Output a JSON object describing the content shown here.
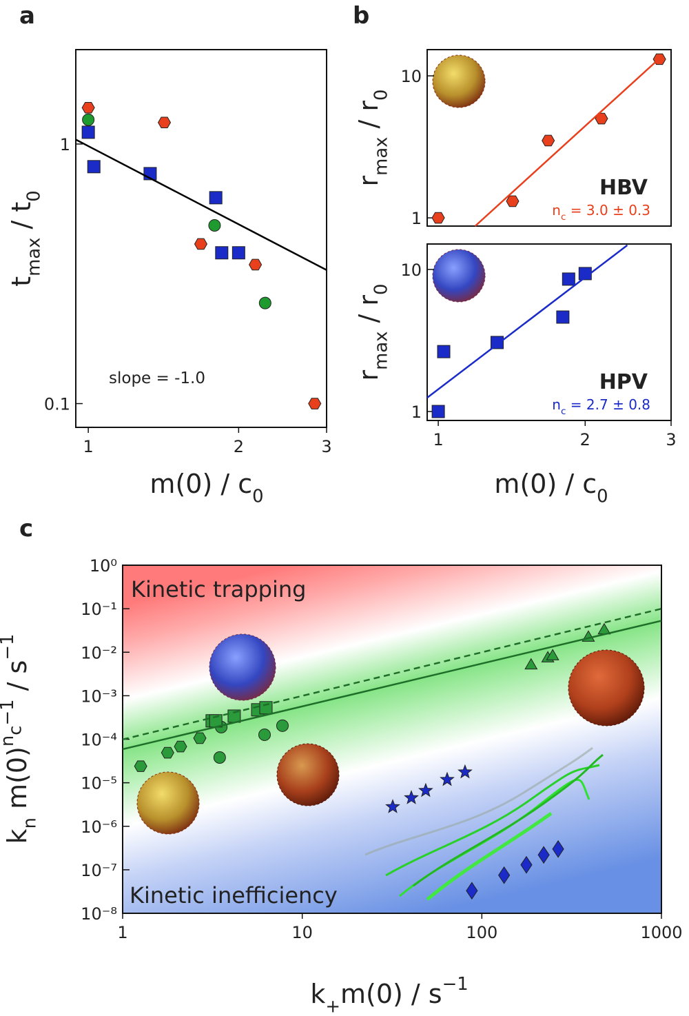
{
  "chart_data": [
    {
      "panel": "a",
      "type": "scatter",
      "xscale": "log",
      "yscale": "log",
      "xlim": [
        0.944,
        3
      ],
      "ylim": [
        0.081,
        2.31
      ],
      "xticks": [
        1,
        2,
        3
      ],
      "yticks": [
        0.1,
        1
      ],
      "xlabel": [
        {
          "text": "m(0) / c"
        },
        {
          "text": "0",
          "shift": "sub"
        }
      ],
      "ylabel": [
        {
          "text": "t"
        },
        {
          "text": "max",
          "shift": "sub"
        },
        {
          "text": " / t"
        },
        {
          "text": "0",
          "shift": "sub"
        }
      ],
      "annotation": "slope = -1.0",
      "series": [
        {
          "marker": "hexagon",
          "color": "#e8401c",
          "x": [
            1,
            1.42,
            1.68,
            2.16,
            2.84
          ],
          "values": [
            1.38,
            1.21,
            0.412,
            0.343,
            0.1
          ]
        },
        {
          "marker": "circle",
          "color": "#1f9a2f",
          "x": [
            1,
            1.79,
            2.26
          ],
          "values": [
            1.24,
            0.486,
            0.244
          ]
        },
        {
          "marker": "square",
          "color": "#1a2bc8",
          "x": [
            1,
            1.026,
            1.33,
            1.8,
            1.85,
            2.0
          ],
          "values": [
            1.11,
            0.818,
            0.769,
            0.621,
            0.381,
            0.381
          ]
        },
        {
          "marker": "line",
          "color": "#000000",
          "x": [
            0.944,
            3
          ],
          "values": [
            1.04,
            0.327
          ]
        }
      ]
    },
    {
      "panel": "b",
      "type": "scatter",
      "xscale": "log",
      "yscale": "log",
      "xlim": [
        0.949,
        3
      ],
      "ylim": [
        0.875,
        15.3
      ],
      "xticks": [],
      "yticks": [
        1,
        10
      ],
      "ylabel": [
        {
          "text": "r"
        },
        {
          "text": "max",
          "shift": "sub"
        },
        {
          "text": " / r"
        },
        {
          "text": "0",
          "shift": "sub"
        }
      ],
      "label": "HBV",
      "fit_label": [
        {
          "text": "n"
        },
        {
          "text": "c",
          "shift": "sub"
        },
        {
          "text": " = 3.0 ± 0.3"
        }
      ],
      "label_color": "#e8401c",
      "series": [
        {
          "marker": "hexagon",
          "color": "#e8401c",
          "x": [
            1,
            1.42,
            1.68,
            2.16,
            2.84
          ],
          "values": [
            1,
            1.31,
            3.5,
            5.0,
            13.1
          ]
        },
        {
          "marker": "line",
          "color": "#e8401c",
          "x": [
            1.19,
            2.87
          ],
          "values": [
            0.875,
            13.7
          ]
        }
      ]
    },
    {
      "type": "scatter",
      "xscale": "log",
      "yscale": "log",
      "xlim": [
        0.949,
        3
      ],
      "ylim": [
        0.865,
        15.1
      ],
      "xticks": [
        1,
        2,
        3
      ],
      "yticks": [
        1,
        10
      ],
      "xlabel": [
        {
          "text": "m(0) / c"
        },
        {
          "text": "0",
          "shift": "sub"
        }
      ],
      "ylabel": [
        {
          "text": "r"
        },
        {
          "text": "max",
          "shift": "sub"
        },
        {
          "text": " / r"
        },
        {
          "text": "0",
          "shift": "sub"
        }
      ],
      "label": "HPV",
      "fit_label": [
        {
          "text": "n"
        },
        {
          "text": "c",
          "shift": "sub"
        },
        {
          "text": " = 2.7 ± 0.8"
        }
      ],
      "label_color": "#1a2bc8",
      "series": [
        {
          "marker": "square",
          "color": "#1a2bc8",
          "x": [
            1,
            1.026,
            1.32,
            1.8,
            1.85,
            2.0
          ],
          "values": [
            1,
            2.64,
            3.06,
            4.62,
            8.55,
            9.35
          ]
        },
        {
          "marker": "line",
          "color": "#1a2bc8",
          "x": [
            0.949,
            2.44
          ],
          "values": [
            1.25,
            14.8
          ]
        }
      ]
    },
    {
      "panel": "c",
      "type": "scatter",
      "xscale": "log",
      "yscale": "log",
      "xlim": [
        1,
        1000
      ],
      "ylim": [
        1e-08,
        1
      ],
      "xticks": [
        1,
        10,
        100,
        1000
      ],
      "yticks": [
        {
          "value": 1e-08,
          "label": "10⁻⁸"
        },
        {
          "value": 1e-07,
          "label": "10⁻⁷"
        },
        {
          "value": 1e-06,
          "label": "10⁻⁶"
        },
        {
          "value": 1e-05,
          "label": "10⁻⁵"
        },
        {
          "value": 0.0001,
          "label": "10⁻⁴"
        },
        {
          "value": 0.001,
          "label": "10⁻³"
        },
        {
          "value": 0.01,
          "label": "10⁻²"
        },
        {
          "value": 0.1,
          "label": "10⁻¹"
        },
        {
          "value": 1,
          "label": "10⁰"
        }
      ],
      "xlabel": [
        {
          "text": "k"
        },
        {
          "text": "+",
          "shift": "sub"
        },
        {
          "text": "m(0) / s"
        },
        {
          "text": "−1",
          "shift": "sup"
        }
      ],
      "ylabel": [
        {
          "text": "k"
        },
        {
          "text": "n",
          "shift": "sub"
        },
        {
          "text": " m(0)"
        },
        {
          "text": "n",
          "shift": "sup"
        },
        {
          "text": "c",
          "shift": "supsub"
        },
        {
          "text": "−1",
          "shift": "sup"
        },
        {
          "text": "  / s"
        },
        {
          "text": "−1",
          "shift": "sup"
        }
      ],
      "annotations": [
        "Kinetic trapping",
        "Kinetic inefficiency"
      ],
      "series": [
        {
          "marker": "hexagon",
          "color": "#2a9a3a",
          "x": [
            1.26,
            1.78,
            2.1,
            2.69
          ],
          "values": [
            2.4e-05,
            4.9e-05,
            6.8e-05,
            0.000106
          ]
        },
        {
          "marker": "circle",
          "color": "#2a9a3a",
          "x": [
            3.47,
            3.54,
            6.17,
            7.76
          ],
          "values": [
            3.8e-05,
            0.00019,
            0.000127,
            0.000205
          ]
        },
        {
          "marker": "square",
          "color": "#2a9a3a",
          "x": [
            3.15,
            3.3,
            4.18,
            5.65,
            6.28
          ],
          "values": [
            0.000265,
            0.000265,
            0.00034,
            0.000475,
            0.00053
          ]
        },
        {
          "marker": "triangle",
          "color": "#2a9a3a",
          "x": [
            188,
            233,
            248,
            392,
            480
          ],
          "values": [
            0.0053,
            0.0077,
            0.0086,
            0.023,
            0.034
          ]
        },
        {
          "marker": "star",
          "color": "#1a2bc8",
          "x": [
            31.9,
            40.5,
            48.7,
            64.1,
            80.6
          ],
          "values": [
            2.8e-06,
            4.5e-06,
            6.6e-06,
            1.18e-05,
            1.76e-05
          ]
        },
        {
          "marker": "diamond",
          "color": "#1a2bc8",
          "x": [
            88,
            133,
            177,
            221,
            266
          ],
          "values": [
            3.3e-08,
            7.5e-08,
            1.3e-07,
            2.2e-07,
            3e-07
          ]
        },
        {
          "marker": "line",
          "color": "#1e6e2a",
          "x": [
            1,
            1000
          ],
          "values": [
            5.9e-05,
            0.053
          ]
        },
        {
          "marker": "dashed-line",
          "color": "#1e6e2a",
          "x": [
            1,
            1000
          ],
          "values": [
            9.9e-05,
            0.1
          ]
        }
      ]
    }
  ]
}
